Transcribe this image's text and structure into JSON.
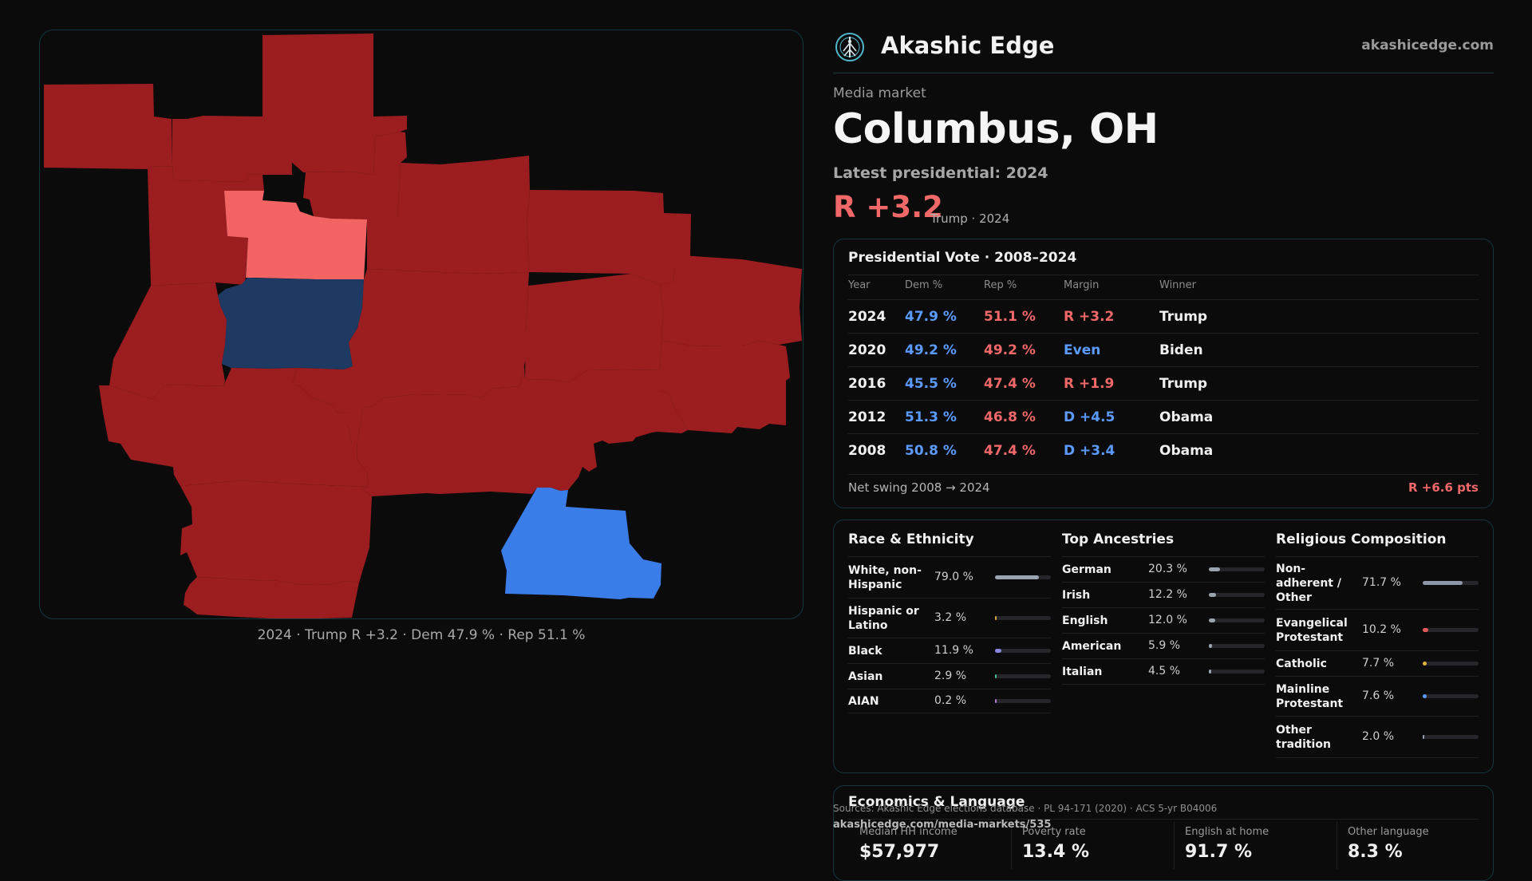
{
  "brand": {
    "name": "Akashic Edge",
    "site": "akashicedge.com",
    "logo_icon": "tree-of-life-icon"
  },
  "market": {
    "eyebrow": "Media market",
    "title": "Columbus, OH"
  },
  "latest": {
    "label": "Latest presidential: 2024",
    "margin": "R +3.2",
    "detail": "Trump · 2024"
  },
  "map": {
    "caption": "2024 · Trump R +3.2 · Dem 47.9 % · Rep 51.1 %",
    "colors": {
      "solid_rep": "#9b1d20",
      "lean_rep": "#f26464",
      "lean_dem": "#1e3a63",
      "solid_dem": "#3b7de8"
    }
  },
  "vote_table": {
    "title": "Presidential Vote · 2008–2024",
    "headers": {
      "year": "Year",
      "dem": "Dem %",
      "rep": "Rep %",
      "margin": "Margin",
      "winner": "Winner"
    },
    "rows": [
      {
        "year": "2024",
        "dem": "47.9 %",
        "rep": "51.1 %",
        "margin": "R +3.2",
        "margin_party": "rep",
        "winner": "Trump"
      },
      {
        "year": "2020",
        "dem": "49.2 %",
        "rep": "49.2 %",
        "margin": "Even",
        "margin_party": "dem",
        "winner": "Biden"
      },
      {
        "year": "2016",
        "dem": "45.5 %",
        "rep": "47.4 %",
        "margin": "R +1.9",
        "margin_party": "rep",
        "winner": "Trump"
      },
      {
        "year": "2012",
        "dem": "51.3 %",
        "rep": "46.8 %",
        "margin": "D +4.5",
        "margin_party": "dem",
        "winner": "Obama"
      },
      {
        "year": "2008",
        "dem": "50.8 %",
        "rep": "47.4 %",
        "margin": "D +3.4",
        "margin_party": "dem",
        "winner": "Obama"
      }
    ],
    "swing_label": "Net swing 2008 → 2024",
    "swing_value": "R +6.6 pts"
  },
  "race": {
    "title": "Race & Ethnicity",
    "items": [
      {
        "label": "White, non-Hispanic",
        "value": "79.0 %",
        "fraction": 0.79,
        "color": "#9aa3b0"
      },
      {
        "label": "Hispanic or Latino",
        "value": "3.2 %",
        "fraction": 0.032,
        "color": "#e0a23a"
      },
      {
        "label": "Black",
        "value": "11.9 %",
        "fraction": 0.119,
        "color": "#8a86e0"
      },
      {
        "label": "Asian",
        "value": "2.9 %",
        "fraction": 0.029,
        "color": "#3fbf8a"
      },
      {
        "label": "AIAN",
        "value": "0.2 %",
        "fraction": 0.002,
        "color": "#b07ad0"
      }
    ]
  },
  "ancestry": {
    "title": "Top Ancestries",
    "items": [
      {
        "label": "German",
        "value": "20.3 %",
        "fraction": 0.203,
        "color": "#9aa3b0"
      },
      {
        "label": "Irish",
        "value": "12.2 %",
        "fraction": 0.122,
        "color": "#9aa3b0"
      },
      {
        "label": "English",
        "value": "12.0 %",
        "fraction": 0.12,
        "color": "#9aa3b0"
      },
      {
        "label": "American",
        "value": "5.9 %",
        "fraction": 0.059,
        "color": "#9aa3b0"
      },
      {
        "label": "Italian",
        "value": "4.5 %",
        "fraction": 0.045,
        "color": "#9aa3b0"
      }
    ]
  },
  "religion": {
    "title": "Religious Composition",
    "items": [
      {
        "label": "Non-adherent / Other",
        "value": "71.7 %",
        "fraction": 0.717,
        "color": "#8d96a4"
      },
      {
        "label": "Evangelical Protestant",
        "value": "10.2 %",
        "fraction": 0.102,
        "color": "#e05a5a"
      },
      {
        "label": "Catholic",
        "value": "7.7 %",
        "fraction": 0.077,
        "color": "#e0b43a"
      },
      {
        "label": "Mainline Protestant",
        "value": "7.6 %",
        "fraction": 0.076,
        "color": "#5b9bff"
      },
      {
        "label": "Other tradition",
        "value": "2.0 %",
        "fraction": 0.02,
        "color": "#9aa3b0"
      }
    ]
  },
  "economics": {
    "title": "Economics & Language",
    "stats": [
      {
        "label": "Median HH income",
        "value": "$57,977"
      },
      {
        "label": "Poverty rate",
        "value": "13.4 %"
      },
      {
        "label": "English at home",
        "value": "91.7 %"
      },
      {
        "label": "Other language",
        "value": "8.3 %"
      }
    ]
  },
  "footer": {
    "sources": "Sources: Akashic Edge elections database · PL 94-171 (2020) · ACS 5-yr B04006",
    "url": "akashicedge.com/media-markets/535"
  }
}
